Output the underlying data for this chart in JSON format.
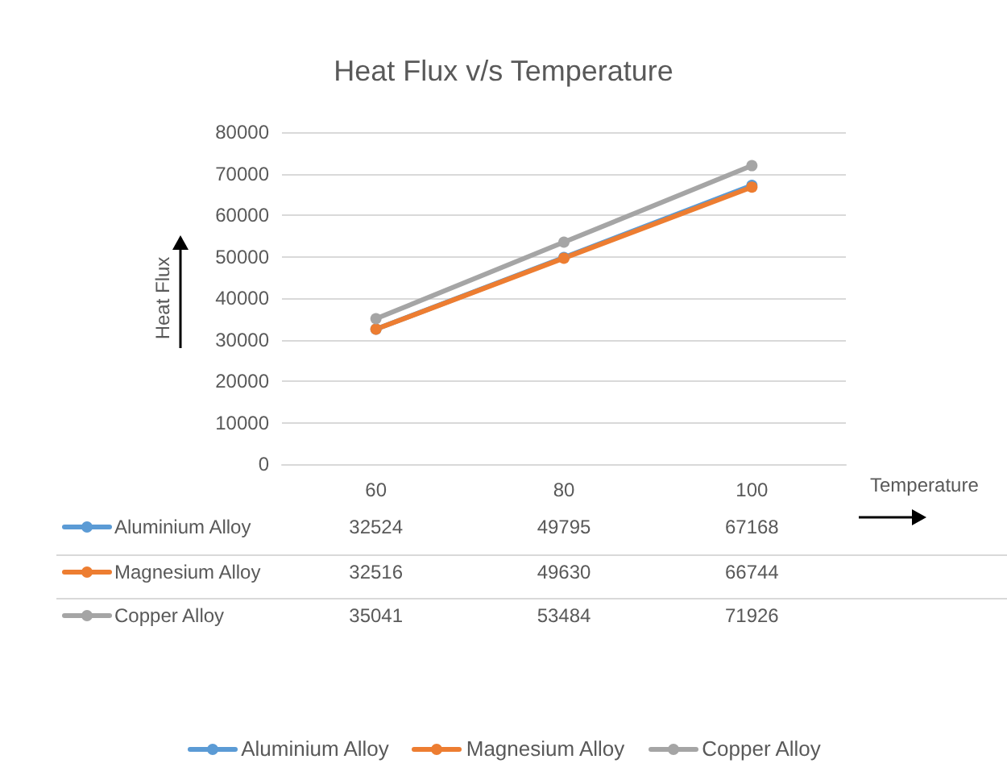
{
  "chart_data": {
    "type": "line",
    "title": "Heat Flux v/s Temperature",
    "xlabel": "Temperature",
    "ylabel": "Heat Flux",
    "categories": [
      "60",
      "80",
      "100"
    ],
    "series": [
      {
        "name": "Aluminium Alloy",
        "color": "#5b9bd5",
        "values": [
          32524,
          49795,
          67168
        ]
      },
      {
        "name": "Magnesium Alloy",
        "color": "#ed7d31",
        "values": [
          32516,
          49630,
          66744
        ]
      },
      {
        "name": "Copper Alloy",
        "color": "#a5a5a5",
        "values": [
          35041,
          53484,
          71926
        ]
      }
    ],
    "ylim": [
      0,
      80000
    ],
    "yticks": [
      0,
      10000,
      20000,
      30000,
      40000,
      50000,
      60000,
      70000,
      80000
    ],
    "grid": "y",
    "legend": "bottom",
    "marker": "circle",
    "data_labels": true
  }
}
